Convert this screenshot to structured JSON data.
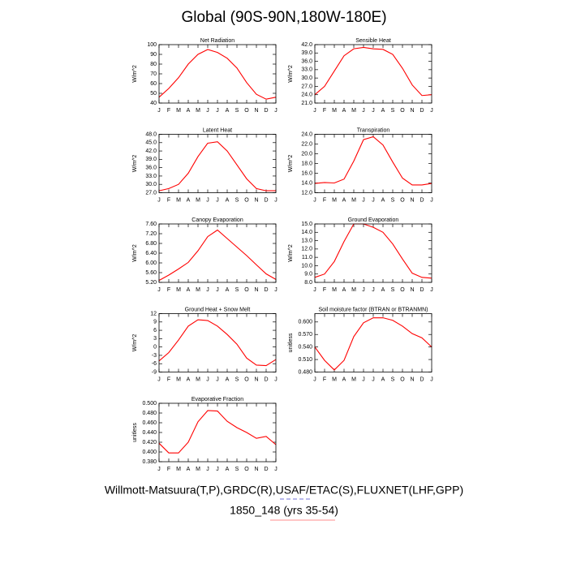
{
  "title": "Global (90S-90N,180W-180E)",
  "footer": [
    "Willmott-Matsuura(T,P),GRDC(R),USAF/ETAC(S),FLUXNET(LHF,GPP)",
    "1850_148 (yrs 35-54)"
  ],
  "chart_data": [
    {
      "type": "line",
      "title": "Net Radiation",
      "y_label": "W/m^2",
      "categories": [
        "J",
        "F",
        "M",
        "A",
        "M",
        "J",
        "J",
        "A",
        "S",
        "O",
        "N",
        "D",
        "J"
      ],
      "series": [
        {
          "color": "#ff0000",
          "values": [
            46,
            55,
            66,
            80,
            90,
            95,
            92,
            86,
            76,
            61,
            49,
            44,
            46
          ]
        }
      ],
      "ylim": [
        40,
        100
      ],
      "yticks": [
        40,
        50,
        60,
        70,
        80,
        90,
        100
      ]
    },
    {
      "type": "line",
      "title": "Sensible Heat",
      "y_label": "W/m^2",
      "categories": [
        "J",
        "F",
        "M",
        "A",
        "M",
        "J",
        "J",
        "A",
        "S",
        "O",
        "N",
        "D",
        "J"
      ],
      "series": [
        {
          "color": "#ff0000",
          "values": [
            24,
            27,
            32.5,
            38,
            40.5,
            41,
            40.5,
            40.3,
            38.5,
            33.5,
            27.5,
            23.7,
            24
          ]
        }
      ],
      "ylim": [
        21,
        42
      ],
      "yticks": [
        {
          "value": 21,
          "label": "21.0"
        },
        {
          "value": 24,
          "label": "24.0"
        },
        {
          "value": 27,
          "label": "27.0"
        },
        {
          "value": 30,
          "label": "30.0"
        },
        {
          "value": 33,
          "label": "33.0"
        },
        {
          "value": 36,
          "label": "36.0"
        },
        {
          "value": 39,
          "label": "39.0"
        },
        {
          "value": 42,
          "label": "42.0"
        }
      ]
    },
    {
      "type": "line",
      "title": "Latent Heat",
      "y_label": "W/m^2",
      "categories": [
        "J",
        "F",
        "M",
        "A",
        "M",
        "J",
        "J",
        "A",
        "S",
        "O",
        "N",
        "D",
        "J"
      ],
      "series": [
        {
          "color": "#ff0000",
          "values": [
            27.7,
            28.5,
            30,
            34,
            40,
            44.8,
            45.3,
            42,
            37,
            32,
            28.5,
            27.7,
            27.7
          ]
        }
      ],
      "ylim": [
        27,
        48
      ],
      "yticks": [
        {
          "value": 27,
          "label": "27.0"
        },
        {
          "value": 30,
          "label": "30.0"
        },
        {
          "value": 33,
          "label": "33.0"
        },
        {
          "value": 36,
          "label": "36.0"
        },
        {
          "value": 39,
          "label": "39.0"
        },
        {
          "value": 42,
          "label": "42.0"
        },
        {
          "value": 45,
          "label": "45.0"
        },
        {
          "value": 48,
          "label": "48.0"
        }
      ]
    },
    {
      "type": "line",
      "title": "Transpiration",
      "y_label": "W/m^2",
      "categories": [
        "J",
        "F",
        "M",
        "A",
        "M",
        "J",
        "J",
        "A",
        "S",
        "O",
        "N",
        "D",
        "J"
      ],
      "series": [
        {
          "color": "#ff0000",
          "values": [
            13.9,
            14.1,
            14,
            14.8,
            18.5,
            22.9,
            23.5,
            21.8,
            18.3,
            15,
            13.6,
            13.6,
            13.9
          ]
        }
      ],
      "ylim": [
        12,
        24
      ],
      "yticks": [
        {
          "value": 12,
          "label": "12.0"
        },
        {
          "value": 14,
          "label": "14.0"
        },
        {
          "value": 16,
          "label": "16.0"
        },
        {
          "value": 18,
          "label": "18.0"
        },
        {
          "value": 20,
          "label": "20.0"
        },
        {
          "value": 22,
          "label": "22.0"
        },
        {
          "value": 24,
          "label": "24.0"
        }
      ]
    },
    {
      "type": "line",
      "title": "Canopy Evaporation",
      "y_label": "W/m^2",
      "categories": [
        "J",
        "F",
        "M",
        "A",
        "M",
        "J",
        "J",
        "A",
        "S",
        "O",
        "N",
        "D",
        "J"
      ],
      "series": [
        {
          "color": "#ff0000",
          "values": [
            5.28,
            5.5,
            5.75,
            6.02,
            6.5,
            7.08,
            7.35,
            7.0,
            6.65,
            6.3,
            5.92,
            5.55,
            5.32
          ]
        }
      ],
      "ylim": [
        5.2,
        7.6
      ],
      "yticks": [
        {
          "value": 5.2,
          "label": "5.20"
        },
        {
          "value": 5.6,
          "label": "5.60"
        },
        {
          "value": 6,
          "label": "6.00"
        },
        {
          "value": 6.4,
          "label": "6.40"
        },
        {
          "value": 6.8,
          "label": "6.80"
        },
        {
          "value": 7.2,
          "label": "7.20"
        },
        {
          "value": 7.6,
          "label": "7.60"
        }
      ]
    },
    {
      "type": "line",
      "title": "Ground Evaporation",
      "y_label": "W/m^2",
      "categories": [
        "J",
        "F",
        "M",
        "A",
        "M",
        "J",
        "J",
        "A",
        "S",
        "O",
        "N",
        "D",
        "J"
      ],
      "series": [
        {
          "color": "#ff0000",
          "values": [
            8.6,
            9.0,
            10.5,
            12.9,
            15.0,
            15.0,
            14.6,
            14.0,
            12.6,
            10.8,
            9.1,
            8.6,
            8.5
          ]
        }
      ],
      "ylim": [
        8,
        15
      ],
      "yticks": [
        {
          "value": 8,
          "label": "8.0"
        },
        {
          "value": 9,
          "label": "9.0"
        },
        {
          "value": 10,
          "label": "10.0"
        },
        {
          "value": 11,
          "label": "11.0"
        },
        {
          "value": 12,
          "label": "12.0"
        },
        {
          "value": 13,
          "label": "13.0"
        },
        {
          "value": 14,
          "label": "14.0"
        },
        {
          "value": 15,
          "label": "15.0"
        }
      ]
    },
    {
      "type": "line",
      "title": "Ground Heat + Snow Melt",
      "y_label": "W/m^2",
      "categories": [
        "J",
        "F",
        "M",
        "A",
        "M",
        "J",
        "J",
        "A",
        "S",
        "O",
        "N",
        "D",
        "J"
      ],
      "series": [
        {
          "color": "#ff0000",
          "values": [
            -5,
            -2,
            2.5,
            7.5,
            9.8,
            9.5,
            7.5,
            4.5,
            1,
            -4,
            -6.5,
            -6.7,
            -4.5
          ]
        }
      ],
      "ylim": [
        -9,
        12
      ],
      "yticks": [
        -9,
        -6,
        -3,
        0,
        3,
        6,
        9,
        12
      ]
    },
    {
      "type": "line",
      "title": "Soil moisture factor (BTRAN or BTRANMN)",
      "y_label": "unitless",
      "categories": [
        "J",
        "F",
        "M",
        "A",
        "M",
        "J",
        "J",
        "A",
        "S",
        "O",
        "N",
        "D",
        "J"
      ],
      "series": [
        {
          "color": "#ff0000",
          "values": [
            0.54,
            0.508,
            0.485,
            0.508,
            0.565,
            0.598,
            0.61,
            0.61,
            0.604,
            0.59,
            0.572,
            0.562,
            0.54
          ]
        }
      ],
      "ylim": [
        0.48,
        0.62
      ],
      "yticks": [
        {
          "value": 0.48,
          "label": "0.480"
        },
        {
          "value": 0.51,
          "label": "0.510"
        },
        {
          "value": 0.54,
          "label": "0.540"
        },
        {
          "value": 0.57,
          "label": "0.570"
        },
        {
          "value": 0.6,
          "label": "0.600"
        }
      ]
    },
    {
      "type": "line",
      "title": "Evaporative Fraction",
      "y_label": "unitless",
      "categories": [
        "J",
        "F",
        "M",
        "A",
        "M",
        "J",
        "J",
        "A",
        "S",
        "O",
        "N",
        "D",
        "J"
      ],
      "series": [
        {
          "color": "#ff0000",
          "values": [
            0.418,
            0.398,
            0.398,
            0.42,
            0.462,
            0.485,
            0.484,
            0.463,
            0.45,
            0.44,
            0.428,
            0.432,
            0.415
          ]
        }
      ],
      "ylim": [
        0.38,
        0.5
      ],
      "yticks": [
        {
          "value": 0.38,
          "label": "0.380"
        },
        {
          "value": 0.4,
          "label": "0.400"
        },
        {
          "value": 0.42,
          "label": "0.420"
        },
        {
          "value": 0.44,
          "label": "0.440"
        },
        {
          "value": 0.46,
          "label": "0.460"
        },
        {
          "value": 0.48,
          "label": "0.480"
        },
        {
          "value": 0.5,
          "label": "0.500"
        }
      ]
    }
  ]
}
